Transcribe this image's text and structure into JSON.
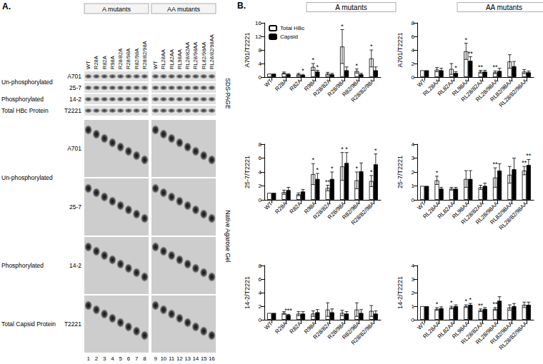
{
  "panel_labels": [
    "A.",
    "B."
  ],
  "gels": {
    "groups": [
      {
        "title": "A mutants",
        "lanes": [
          "WT",
          "R28A",
          "R82A",
          "R98A",
          "R28/82A",
          "R28/98A",
          "R82/98A",
          "R28/82/98A"
        ]
      },
      {
        "title": "AA mutants",
        "lanes": [
          "WT",
          "RL28AA",
          "RL82AA",
          "RL98AA",
          "RL28/82AA",
          "RL28/98AA",
          "RL82/98AA",
          "RL28/82/98AA"
        ]
      }
    ],
    "lane_numbers": [
      1,
      2,
      3,
      4,
      5,
      6,
      7,
      8,
      9,
      10,
      11,
      12,
      13,
      14,
      15,
      16
    ],
    "sds_page": {
      "title": "SDS-PAGE",
      "groups": [
        {
          "label": "Un-phosphorylated",
          "antibodies": [
            "A701",
            "25-7"
          ]
        },
        {
          "label": "Phosphorylated",
          "antibodies": [
            "14-2"
          ]
        },
        {
          "label": "Total HBc Protein",
          "antibodies": [
            "T2221"
          ]
        }
      ]
    },
    "native": {
      "title": "Native Agarose Gel",
      "groups": [
        {
          "label": "Un-phosphorylated",
          "antibodies": [
            "A701",
            "25-7"
          ]
        },
        {
          "label": "Phosphorylated",
          "antibodies": [
            "14-2"
          ]
        },
        {
          "label": "Total Capsid Protein",
          "antibodies": [
            "T2221"
          ]
        }
      ]
    }
  },
  "chart_data": [
    {
      "type": "bar",
      "title": "A mutants",
      "y_label": "A701/T2221",
      "categories": [
        "WT",
        "R28A",
        "R82A",
        "R98A",
        "R28/82A",
        "R28/98A",
        "R82/98A",
        "R28/82/98A"
      ],
      "series": [
        {
          "name": "Total HBc",
          "color": "#ffffff",
          "values": [
            1,
            1.2,
            0.8,
            3,
            1,
            9,
            1.8,
            5.5
          ],
          "errors": [
            0,
            0.3,
            0.3,
            1,
            0.4,
            5,
            0.6,
            2.5
          ],
          "significance": [
            null,
            null,
            null,
            "*",
            null,
            "*",
            "*",
            "*"
          ]
        },
        {
          "name": "Capsid",
          "color": "#000000",
          "values": [
            1,
            0.8,
            0.6,
            1.6,
            0.8,
            2,
            0.8,
            2
          ],
          "errors": [
            0,
            0.2,
            0.2,
            0.4,
            0.3,
            1,
            0.3,
            1
          ],
          "significance": [
            null,
            null,
            "*",
            "*",
            null,
            null,
            null,
            null
          ]
        }
      ],
      "ylim": [
        0,
        16
      ],
      "yticks": [
        0,
        4,
        8,
        12,
        16
      ],
      "legend": "top-left"
    },
    {
      "type": "bar",
      "title": "AA mutants",
      "y_label": "A701/T2221",
      "categories": [
        "WT",
        "RL28AA",
        "RL82AA",
        "RL98AA",
        "RL28/82AA",
        "RL28/98AA",
        "RL82/98AA",
        "RL28/82/98AA"
      ],
      "series": [
        {
          "name": "Total HBc",
          "color": "#ffffff",
          "values": [
            1,
            1.1,
            1.2,
            3.8,
            0.8,
            0.7,
            2.3,
            0.8
          ],
          "errors": [
            0,
            0.3,
            0.8,
            1.2,
            0.2,
            0.2,
            1,
            0.3
          ],
          "significance": [
            null,
            null,
            null,
            "*",
            "**",
            "**",
            null,
            null
          ]
        },
        {
          "name": "Capsid",
          "color": "#000000",
          "values": [
            1,
            1,
            0.6,
            2.4,
            0.8,
            0.9,
            1.6,
            0.7
          ],
          "errors": [
            0,
            0.3,
            0.2,
            0.6,
            0.2,
            0.4,
            0.7,
            0.2
          ],
          "significance": [
            null,
            null,
            "*",
            "**",
            null,
            null,
            null,
            null
          ]
        }
      ],
      "ylim": [
        0,
        8
      ],
      "yticks": [
        0,
        2,
        4,
        6,
        8
      ]
    },
    {
      "type": "bar",
      "y_label": "25-7/T2221",
      "categories": [
        "WT",
        "R28A",
        "R82A",
        "R98A",
        "R28/82A",
        "R28/98A",
        "R82/98A",
        "R28/82/98A"
      ],
      "series": [
        {
          "name": "Total HBc",
          "color": "#ffffff",
          "values": [
            1,
            1.1,
            0.8,
            3.7,
            1.7,
            4.8,
            2.8,
            2.7
          ],
          "errors": [
            0,
            0.3,
            0.2,
            1.5,
            0.4,
            2,
            1.2,
            0.8
          ],
          "significance": [
            null,
            null,
            null,
            "*",
            "**",
            "*",
            "*",
            "*"
          ]
        },
        {
          "name": "Capsid",
          "color": "#000000",
          "values": [
            1,
            1.4,
            1.2,
            3,
            3,
            5.3,
            4.1,
            5.1
          ],
          "errors": [
            0,
            0.4,
            0.3,
            0.8,
            1,
            1.5,
            1.2,
            1.5
          ],
          "significance": [
            null,
            null,
            null,
            "*",
            "*",
            "*",
            null,
            "*"
          ]
        }
      ],
      "ylim": [
        0,
        8
      ],
      "yticks": [
        0,
        2,
        4,
        6,
        8
      ]
    },
    {
      "type": "bar",
      "y_label": "25-7/T2221",
      "categories": [
        "WT",
        "RL28AA",
        "RL82AA",
        "RL98AA",
        "RL28/82AA",
        "RL28/98AA",
        "RL82/98AA",
        "RL28/82/98AA"
      ],
      "series": [
        {
          "name": "Total HBc",
          "color": "#ffffff",
          "values": [
            1,
            1.4,
            0.8,
            1.5,
            0.9,
            1.6,
            1.8,
            2.1
          ],
          "errors": [
            0,
            0.3,
            0.1,
            0.6,
            0.15,
            0.7,
            0.6,
            0.3
          ],
          "significance": [
            null,
            "*",
            null,
            null,
            null,
            "**",
            null,
            "**"
          ]
        },
        {
          "name": "Capsid",
          "color": "#000000",
          "values": [
            1,
            0.8,
            0.8,
            1.5,
            1,
            2.1,
            2.2,
            2.5
          ],
          "errors": [
            0,
            0.1,
            0.1,
            0.6,
            0.2,
            0.5,
            0.8,
            0.4
          ],
          "significance": [
            null,
            null,
            null,
            null,
            null,
            null,
            null,
            "**"
          ]
        }
      ],
      "ylim": [
        0,
        4
      ],
      "yticks": [
        0,
        1,
        2,
        3,
        4
      ]
    },
    {
      "type": "bar",
      "y_label": "14-2/T2221",
      "categories": [
        "WT",
        "R28A",
        "R82A",
        "R98A",
        "R28/82A",
        "R28/98A",
        "R82/98A",
        "R28/82/98A"
      ],
      "series": [
        {
          "name": "Total HBc",
          "color": "#ffffff",
          "values": [
            1,
            1,
            0.9,
            0.9,
            1.5,
            1,
            1.5,
            1.3
          ],
          "errors": [
            0,
            0.2,
            0.3,
            0.4,
            1,
            0.4,
            1,
            0.8
          ],
          "significance": [
            null,
            null,
            null,
            null,
            null,
            null,
            null,
            null
          ]
        },
        {
          "name": "Capsid",
          "color": "#000000",
          "values": [
            1,
            0.7,
            0.9,
            1.1,
            1.1,
            0.9,
            1,
            0.9
          ],
          "errors": [
            0,
            0.1,
            0.3,
            0.4,
            0.5,
            0.3,
            0.5,
            0.4
          ],
          "significance": [
            null,
            "***",
            null,
            null,
            null,
            null,
            null,
            null
          ]
        }
      ],
      "ylim": [
        0,
        8
      ],
      "yticks": [
        0,
        2,
        4,
        6,
        8
      ]
    },
    {
      "type": "bar",
      "y_label": "14-2/T2221",
      "categories": [
        "WT",
        "RL28AA",
        "RL82AA",
        "RL98AA",
        "RL28/82AA",
        "RL28/98AA",
        "RL82/98AA",
        "RL28/82/98AA"
      ],
      "series": [
        {
          "name": "Total HBc",
          "color": "#ffffff",
          "values": [
            1,
            0.8,
            0.9,
            1,
            0.7,
            0.8,
            0.9,
            1.1
          ],
          "errors": [
            0,
            0.1,
            0.1,
            0.1,
            0.1,
            0.1,
            0.2,
            0.2
          ],
          "significance": [
            null,
            "*",
            "*",
            "*",
            "**",
            "**",
            null,
            null
          ]
        },
        {
          "name": "Capsid",
          "color": "#000000",
          "values": [
            1,
            0.85,
            1,
            1.1,
            0.8,
            1.4,
            1,
            1.1
          ],
          "errors": [
            0,
            0.1,
            0.1,
            0.1,
            0.1,
            0.3,
            0.2,
            0.2
          ],
          "significance": [
            null,
            null,
            null,
            "*",
            null,
            null,
            null,
            null
          ]
        }
      ],
      "ylim": [
        0,
        4
      ],
      "yticks": [
        0,
        1,
        2,
        3,
        4
      ]
    }
  ]
}
